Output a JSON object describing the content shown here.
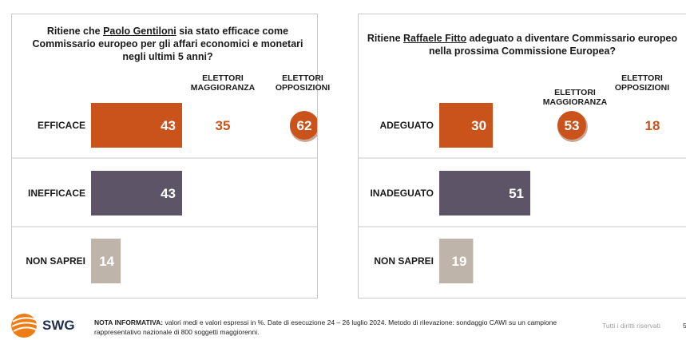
{
  "chart_data": [
    {
      "type": "bar",
      "title_parts": [
        "Ritiene che ",
        "Paolo Gentiloni",
        " sia stato efficace come Commissario europeo per gli affari economici e monetari negli ultimi 5 anni?"
      ],
      "categories": [
        "EFFICACE",
        "INEFFICACE",
        "NON SAPREI"
      ],
      "values": [
        43,
        43,
        14
      ],
      "bar_colors": [
        "#c9531b",
        "#5e5468",
        "#bfb4aa"
      ],
      "column_headers": [
        "ELETTORI MAGGIORANZA",
        "ELETTORI OPPOSIZIONI"
      ],
      "group_values": {
        "maggioranza": 35,
        "opposizioni": 62
      },
      "highlight": "opposizioni"
    },
    {
      "type": "bar",
      "title_parts": [
        "Ritiene ",
        "Raffaele Fitto",
        " adeguato a diventare Commissario europeo nella prossima Commissione Europea?"
      ],
      "categories": [
        "ADEGUATO",
        "INADEGUATO",
        "NON SAPREI"
      ],
      "values": [
        30,
        51,
        19
      ],
      "bar_colors": [
        "#c9531b",
        "#5e5468",
        "#bfb4aa"
      ],
      "column_headers": [
        "ELETTORI MAGGIORANZA",
        "ELETTORI OPPOSIZIONI"
      ],
      "group_values": {
        "maggioranza": 53,
        "opposizioni": 18
      },
      "highlight": "maggioranza"
    }
  ],
  "footer": {
    "logo": "SWG",
    "nota_label": "NOTA INFORMATIVA:",
    "nota_text": " valori medi e valori espressi in %. Date di esecuzione 24 – 26 luglio 2024. Metodo di rilevazione: sondaggio CAWI su un campione rappresentativo nazionale di 800 soggetti maggiorenni.",
    "rights": "Tutti i diritti riservati",
    "page": "5"
  },
  "colors": {
    "accent": "#c9531b",
    "dark_bar": "#5e5468",
    "light_bar": "#bfb4aa",
    "border": "#c8c8c8"
  }
}
